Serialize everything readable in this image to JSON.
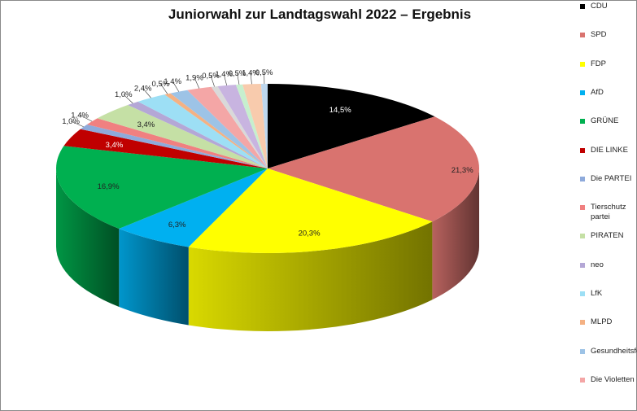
{
  "chart_data": {
    "type": "pie",
    "title": "Juniorwahl zur Landtagswahl 2022 – Ergebnis",
    "legend_position": "right",
    "slices": [
      {
        "name": "CDU",
        "value": 14.5,
        "label": "14,5%",
        "color": "#000000"
      },
      {
        "name": "SPD",
        "value": 21.3,
        "label": "21,3%",
        "color": "#d9736f"
      },
      {
        "name": "FDP",
        "value": 20.3,
        "label": "20,3%",
        "color": "#ffff00"
      },
      {
        "name": "AfD",
        "value": 6.3,
        "label": "6,3%",
        "color": "#00b0f0"
      },
      {
        "name": "GRÜNE",
        "value": 16.9,
        "label": "16,9%",
        "color": "#00b050"
      },
      {
        "name": "DIE LINKE",
        "value": 3.4,
        "label": "3,4%",
        "color": "#c00000"
      },
      {
        "name": "Die PARTEI",
        "value": 1.0,
        "label": "1,0%",
        "color": "#8eaadb"
      },
      {
        "name": "Tierschutz partei",
        "value": 1.4,
        "label": "1,4%",
        "color": "#f08080"
      },
      {
        "name": "PIRATEN",
        "value": 3.4,
        "label": "3,4%",
        "color": "#c5e0a5"
      },
      {
        "name": "neo",
        "value": 1.0,
        "label": "1,0%",
        "color": "#b4a7d6"
      },
      {
        "name": "LfK",
        "value": 2.4,
        "label": "2,4%",
        "color": "#9ddff5"
      },
      {
        "name": "MLPD",
        "value": 0.5,
        "label": "0,5%",
        "color": "#f4b183"
      },
      {
        "name": "Gesundheitsforschung",
        "value": 1.4,
        "label": "1,4%",
        "color": "#9dc3e6"
      },
      {
        "name": "Die Violetten",
        "value": 1.9,
        "label": "1,9%",
        "color": "#f4a6a6"
      },
      {
        "name": "",
        "value": 0.5,
        "label": "0,5%",
        "color": "#d9d9d9"
      },
      {
        "name": "",
        "value": 1.4,
        "label": "1,4%",
        "color": "#c8b4e0"
      },
      {
        "name": "",
        "value": 0.5,
        "label": "0,5%",
        "color": "#c6efce"
      },
      {
        "name": "",
        "value": 1.4,
        "label": "1,4%",
        "color": "#f8cbad"
      },
      {
        "name": "",
        "value": 0.5,
        "label": "0,5%",
        "color": "#bdd7ee"
      }
    ],
    "legend": [
      {
        "label": "CDU",
        "color": "#000000"
      },
      {
        "label": "SPD",
        "color": "#d9736f"
      },
      {
        "label": "FDP",
        "color": "#ffff00"
      },
      {
        "label": "AfD",
        "color": "#00b0f0"
      },
      {
        "label": "GRÜNE",
        "color": "#00b050"
      },
      {
        "label": "DIE LINKE",
        "color": "#c00000"
      },
      {
        "label": "Die PARTEI",
        "color": "#8eaadb"
      },
      {
        "label": "Tierschutz partei",
        "color": "#f08080"
      },
      {
        "label": "PIRATEN",
        "color": "#c5e0a5"
      },
      {
        "label": "neo",
        "color": "#b4a7d6"
      },
      {
        "label": "LfK",
        "color": "#9ddff5"
      },
      {
        "label": "MLPD",
        "color": "#f4b183"
      },
      {
        "label": "Gesundheitsforschung",
        "color": "#9dc3e6"
      },
      {
        "label": "Die Violetten",
        "color": "#f4a6a6"
      }
    ]
  }
}
